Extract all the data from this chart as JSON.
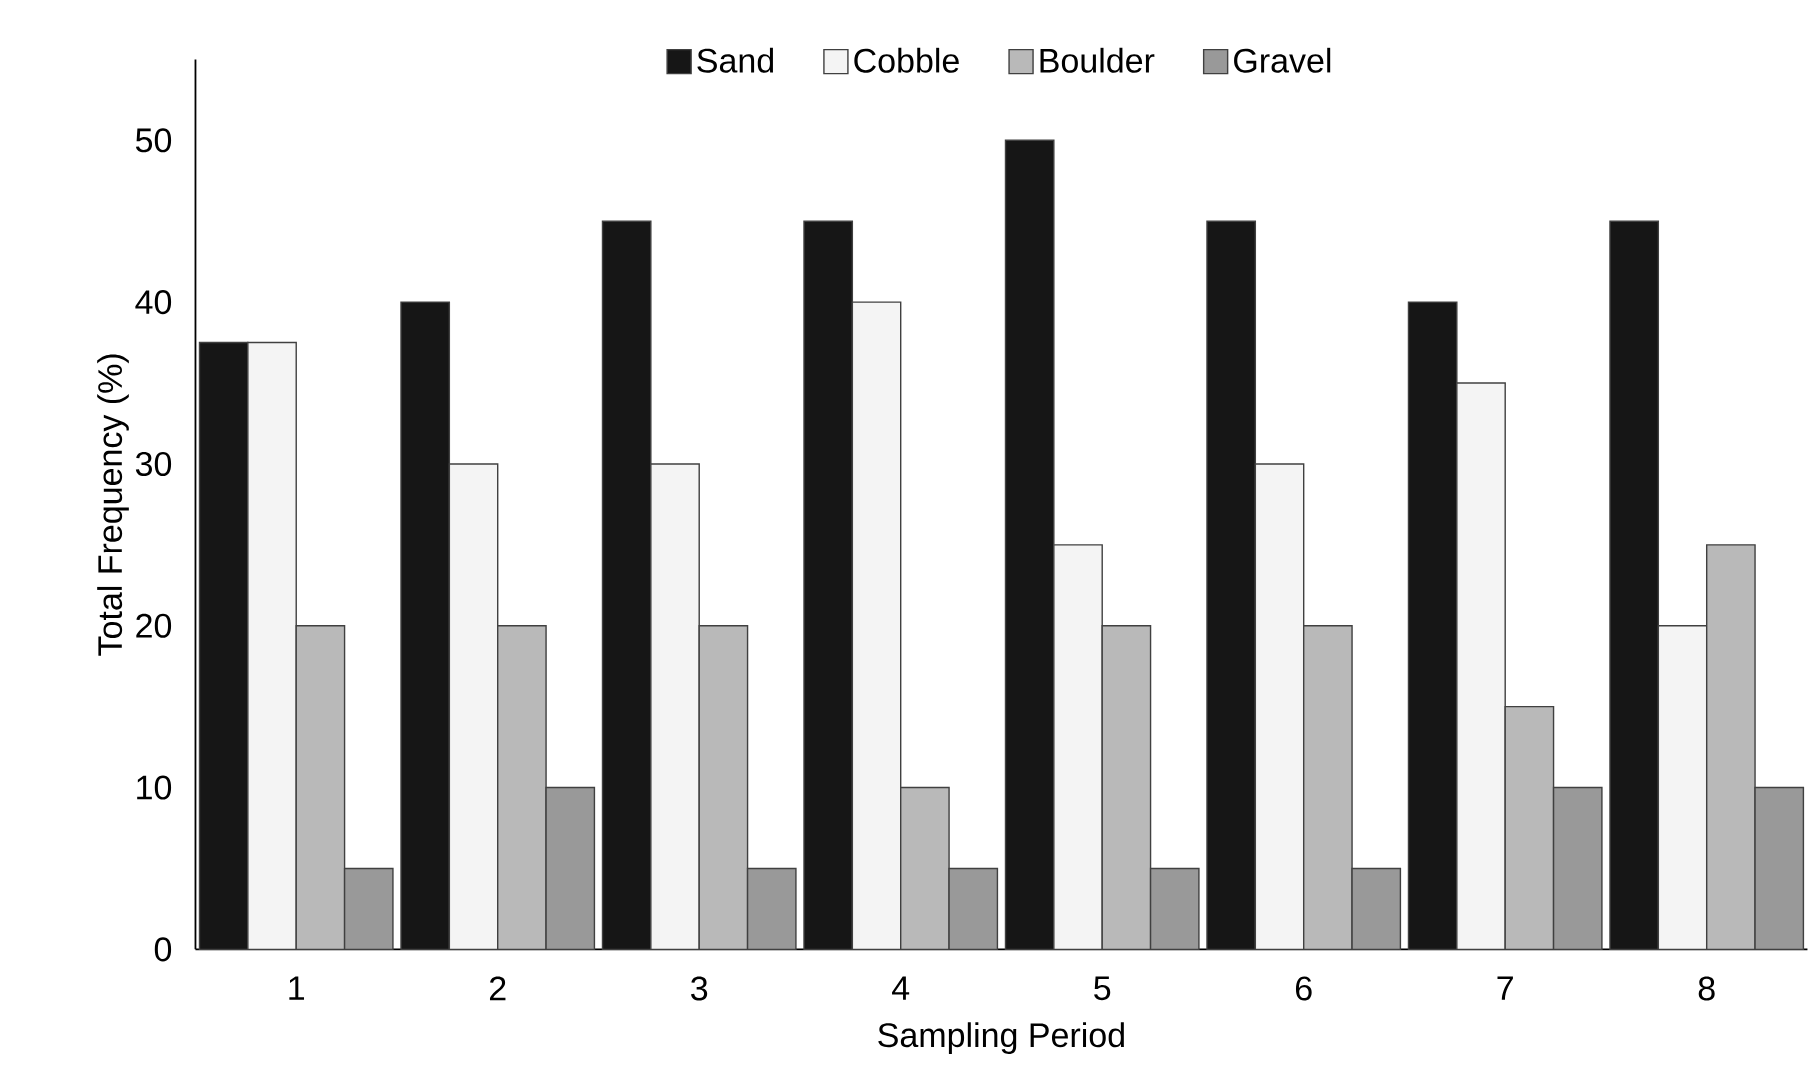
{
  "chart_data": {
    "type": "bar",
    "xlabel": "Sampling Period",
    "ylabel": "Total Frequency (%)",
    "categories": [
      "1",
      "2",
      "3",
      "4",
      "5",
      "6",
      "7",
      "8"
    ],
    "series": [
      {
        "name": "Sand",
        "color": "#161616",
        "values": [
          37.5,
          40,
          45,
          45,
          50,
          45,
          40,
          45
        ]
      },
      {
        "name": "Cobble",
        "color": "#f4f4f4",
        "values": [
          37.5,
          30,
          30,
          40,
          25,
          30,
          35,
          20
        ]
      },
      {
        "name": "Boulder",
        "color": "#b9b9b9",
        "values": [
          20,
          20,
          20,
          10,
          20,
          20,
          15,
          25
        ]
      },
      {
        "name": "Gravel",
        "color": "#999999",
        "values": [
          5,
          10,
          5,
          5,
          5,
          5,
          10,
          10
        ]
      }
    ],
    "ylim": [
      0,
      55
    ],
    "yticks": [
      0,
      10,
      20,
      30,
      40,
      50
    ],
    "legend": "top"
  }
}
